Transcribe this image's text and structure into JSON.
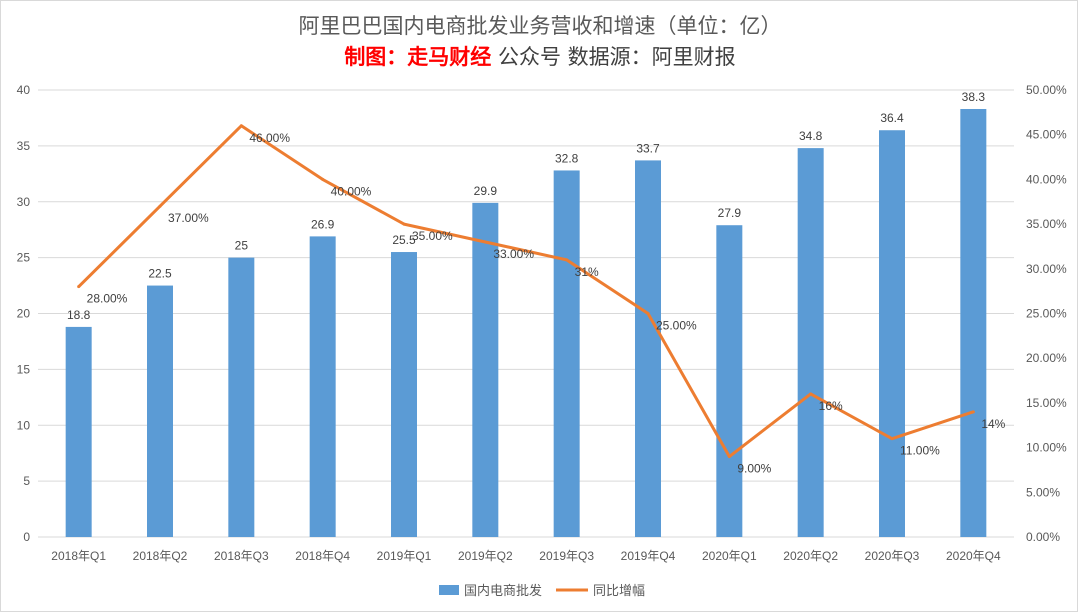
{
  "header": {
    "title": "阿里巴巴国内电商批发业务营收和增速（单位：亿）",
    "credit_highlight": "制图：走马财经",
    "credit_rest": "公众号  数据源：阿里财报"
  },
  "colors": {
    "bar": "#5b9bd5",
    "line": "#ed7d31",
    "grid": "#d9d9d9",
    "text": "#595959"
  },
  "chart_data": {
    "type": "bar",
    "categories": [
      "2018年Q1",
      "2018年Q2",
      "2018年Q3",
      "2018年Q4",
      "2019年Q1",
      "2019年Q2",
      "2019年Q3",
      "2019年Q4",
      "2020年Q1",
      "2020年Q2",
      "2020年Q3",
      "2020年Q4"
    ],
    "series": [
      {
        "name": "国内电商批发",
        "type": "bar",
        "axis": "left",
        "values": [
          18.8,
          22.5,
          25,
          26.9,
          25.5,
          29.9,
          32.8,
          33.7,
          27.9,
          34.8,
          36.4,
          38.3
        ],
        "labels": [
          "18.8",
          "22.5",
          "25",
          "26.9",
          "25.5",
          "29.9",
          "32.8",
          "33.7",
          "27.9",
          "34.8",
          "36.4",
          "38.3"
        ]
      },
      {
        "name": "同比增幅",
        "type": "line",
        "axis": "right",
        "values": [
          0.28,
          0.37,
          0.46,
          0.4,
          0.35,
          0.33,
          0.31,
          0.25,
          0.09,
          0.16,
          0.11,
          0.14
        ],
        "labels": [
          "28.00%",
          "37.00%",
          "46.00%",
          "40.00%",
          "35.00%",
          "33.00%",
          "31%",
          "25.00%",
          "9.00%",
          "16%",
          "11.00%",
          "14%"
        ]
      }
    ],
    "y_left": {
      "ylim": [
        0,
        40
      ],
      "ticks": [
        "0",
        "5",
        "10",
        "15",
        "20",
        "25",
        "30",
        "35",
        "40"
      ]
    },
    "y_right": {
      "ylim": [
        0,
        0.5
      ],
      "ticks": [
        "0.00%",
        "5.00%",
        "10.00%",
        "15.00%",
        "20.00%",
        "25.00%",
        "30.00%",
        "35.00%",
        "40.00%",
        "45.00%",
        "50.00%"
      ]
    },
    "grid": true,
    "legend_position": "bottom-center"
  }
}
